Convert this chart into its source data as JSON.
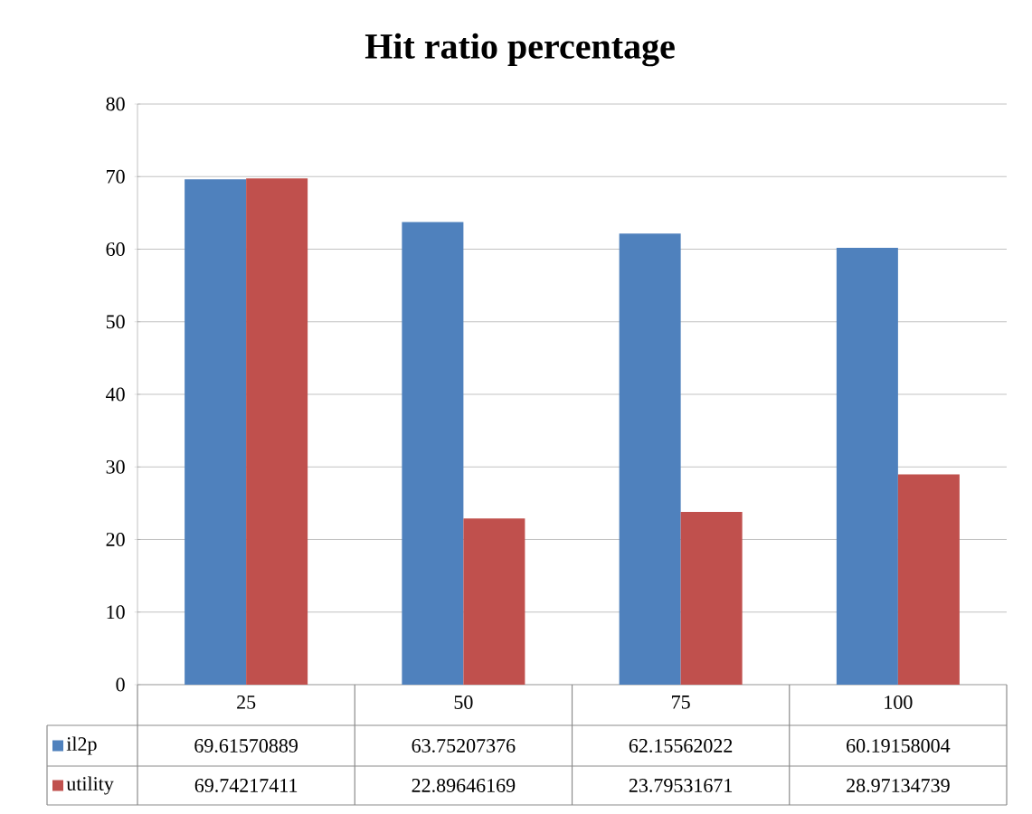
{
  "chart_data": {
    "type": "bar",
    "title": "Hit ratio percentage",
    "categories": [
      "25",
      "50",
      "75",
      "100"
    ],
    "series": [
      {
        "name": "il2p",
        "color": "#4f81bd",
        "values": [
          69.61570889,
          63.75207376,
          62.15562022,
          60.19158004
        ]
      },
      {
        "name": "utility",
        "color": "#c0504d",
        "values": [
          69.74217411,
          22.89646169,
          23.79531671,
          28.97134739
        ]
      }
    ],
    "ylim": [
      0,
      80
    ],
    "yticks": [
      0,
      10,
      20,
      30,
      40,
      50,
      60,
      70,
      80
    ],
    "grid": "y",
    "legend": "bottom",
    "data_labels": true
  }
}
